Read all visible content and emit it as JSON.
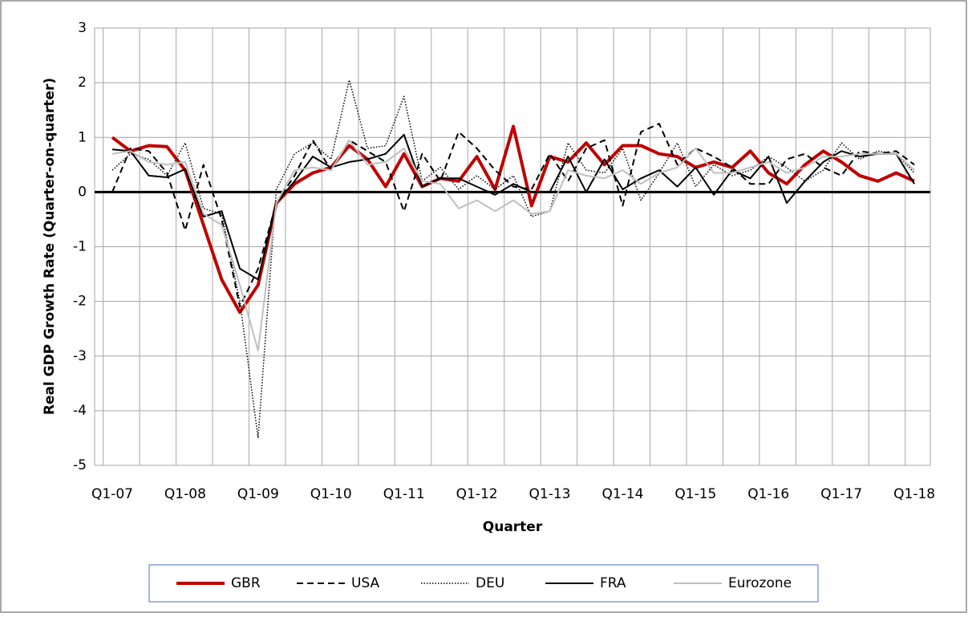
{
  "chart_data": {
    "type": "line",
    "x_label": "Quarter",
    "y_label": "Real GDP  Growth Rate (Quarter-on-quarter)",
    "categories": [
      "Q1-07",
      null,
      null,
      null,
      "Q1-08",
      null,
      null,
      null,
      "Q1-09",
      null,
      null,
      null,
      "Q1-10",
      null,
      null,
      null,
      "Q1-11",
      null,
      null,
      null,
      "Q1-12",
      null,
      null,
      null,
      "Q1-13",
      null,
      null,
      null,
      "Q1-14",
      null,
      null,
      null,
      "Q1-15",
      null,
      null,
      null,
      "Q1-16",
      null,
      null,
      null,
      "Q1-17",
      null,
      null,
      null,
      "Q1-18"
    ],
    "ylim": [
      -5,
      3
    ],
    "yticks": [
      -5,
      -4,
      -3,
      -2,
      -1,
      0,
      1,
      2,
      3
    ],
    "grid": true,
    "series": [
      {
        "name": "GBR",
        "color": "#c00000",
        "width": 4,
        "style": "solid",
        "values": [
          1.0,
          0.75,
          0.85,
          0.83,
          0.4,
          -0.6,
          -1.6,
          -2.2,
          -1.7,
          -0.2,
          0.15,
          0.35,
          0.45,
          0.85,
          0.6,
          0.1,
          0.7,
          0.1,
          0.25,
          0.2,
          0.65,
          0.05,
          1.2,
          -0.25,
          0.65,
          0.55,
          0.9,
          0.5,
          0.85,
          0.85,
          0.7,
          0.65,
          0.45,
          0.55,
          0.45,
          0.75,
          0.35,
          0.15,
          0.5,
          0.75,
          0.55,
          0.3,
          0.2,
          0.35,
          0.2
        ]
      },
      {
        "name": "USA",
        "color": "#000000",
        "width": 2,
        "style": "dashed",
        "values": [
          0.0,
          0.8,
          0.75,
          0.35,
          -0.7,
          0.5,
          -0.5,
          -2.1,
          -1.4,
          -0.2,
          0.3,
          0.95,
          0.4,
          0.95,
          0.75,
          0.55,
          -0.35,
          0.7,
          0.2,
          1.1,
          0.8,
          0.4,
          0.1,
          0.05,
          0.7,
          0.2,
          0.8,
          0.95,
          -0.25,
          1.1,
          1.25,
          0.5,
          0.8,
          0.65,
          0.45,
          0.15,
          0.15,
          0.6,
          0.7,
          0.45,
          0.3,
          0.75,
          0.7,
          0.75,
          0.5
        ]
      },
      {
        "name": "DEU",
        "color": "#000000",
        "width": 1.5,
        "style": "dotted",
        "values": [
          0.4,
          0.7,
          0.6,
          0.3,
          0.9,
          -0.3,
          -0.4,
          -2.0,
          -4.5,
          0.05,
          0.7,
          0.9,
          0.6,
          2.05,
          0.8,
          0.85,
          1.75,
          0.2,
          0.45,
          0.05,
          0.3,
          0.05,
          0.3,
          -0.45,
          -0.35,
          0.9,
          0.4,
          0.35,
          0.8,
          -0.15,
          0.35,
          0.9,
          0.1,
          0.5,
          0.3,
          0.4,
          0.65,
          0.45,
          0.2,
          0.4,
          0.9,
          0.6,
          0.75,
          0.7,
          0.35
        ]
      },
      {
        "name": "FRA",
        "color": "#000000",
        "width": 2,
        "style": "solid",
        "values": [
          0.78,
          0.75,
          0.3,
          0.27,
          0.42,
          -0.45,
          -0.35,
          -1.4,
          -1.6,
          -0.2,
          0.2,
          0.65,
          0.45,
          0.55,
          0.6,
          0.7,
          1.05,
          0.1,
          0.25,
          0.25,
          0.1,
          -0.05,
          0.15,
          0.0,
          0.0,
          0.65,
          0.0,
          0.6,
          0.05,
          0.25,
          0.4,
          0.1,
          0.45,
          -0.05,
          0.4,
          0.25,
          0.65,
          -0.2,
          0.2,
          0.55,
          0.75,
          0.65,
          0.7,
          0.7,
          0.15
        ]
      },
      {
        "name": "Eurozone",
        "color": "#bfbfbf",
        "width": 2,
        "style": "solid",
        "values": [
          0.7,
          0.75,
          0.55,
          0.5,
          0.55,
          -0.4,
          -0.6,
          -1.7,
          -2.9,
          -0.2,
          0.4,
          0.45,
          0.4,
          0.95,
          0.5,
          0.55,
          0.8,
          0.2,
          0.15,
          -0.3,
          -0.15,
          -0.35,
          -0.15,
          -0.4,
          -0.35,
          0.4,
          0.3,
          0.25,
          0.4,
          0.15,
          0.35,
          0.45,
          0.8,
          0.35,
          0.35,
          0.45,
          0.55,
          0.35,
          0.45,
          0.65,
          0.65,
          0.7,
          0.7,
          0.7,
          0.4
        ]
      }
    ]
  }
}
